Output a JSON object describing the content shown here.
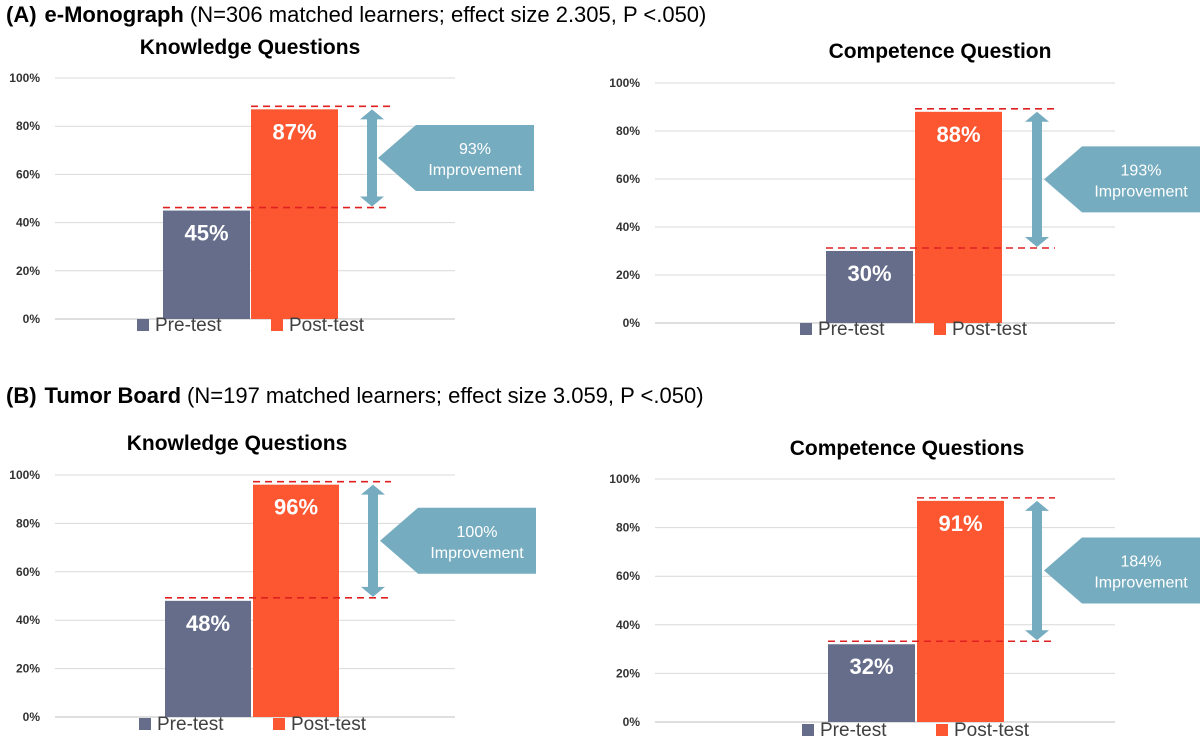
{
  "sections": [
    {
      "letter": "(A)",
      "name": "e-Monograph",
      "detail": "(N=306 matched learners; effect size 2.305, P <.050)"
    },
    {
      "letter": "(B)",
      "name": "Tumor Board",
      "detail": "(N=197 matched learners; effect size 3.059, P <.050)"
    }
  ],
  "colors": {
    "pre": "#656d8a",
    "post": "#fc5731",
    "arrow": "#76acbf",
    "dashed": "#e02020",
    "grid": "#d9d9d9",
    "axis": "#333333"
  },
  "chart_data": [
    {
      "type": "bar",
      "title": "Knowledge Questions",
      "categories": [
        "Pre-test",
        "Post-test"
      ],
      "values": [
        45,
        87
      ],
      "value_labels": [
        "45%",
        "87%"
      ],
      "improvement_label": [
        "93%",
        "Improvement"
      ],
      "yticks": [
        "0%",
        "20%",
        "40%",
        "60%",
        "80%",
        "100%"
      ],
      "ylim": [
        0,
        100
      ],
      "legend": [
        "Pre-test",
        "Post-test"
      ]
    },
    {
      "type": "bar",
      "title": "Competence Question",
      "categories": [
        "Pre-test",
        "Post-test"
      ],
      "values": [
        30,
        88
      ],
      "value_labels": [
        "30%",
        "88%"
      ],
      "improvement_label": [
        "193%",
        "Improvement"
      ],
      "yticks": [
        "0%",
        "20%",
        "40%",
        "60%",
        "80%",
        "100%"
      ],
      "ylim": [
        0,
        100
      ],
      "legend": [
        "Pre-test",
        "Post-test"
      ]
    },
    {
      "type": "bar",
      "title": "Knowledge Questions",
      "categories": [
        "Pre-test",
        "Post-test"
      ],
      "values": [
        48,
        96
      ],
      "value_labels": [
        "48%",
        "96%"
      ],
      "improvement_label": [
        "100%",
        "Improvement"
      ],
      "yticks": [
        "0%",
        "20%",
        "40%",
        "60%",
        "80%",
        "100%"
      ],
      "ylim": [
        0,
        100
      ],
      "legend": [
        "Pre-test",
        "Post-test"
      ]
    },
    {
      "type": "bar",
      "title": "Competence Questions",
      "categories": [
        "Pre-test",
        "Post-test"
      ],
      "values": [
        32,
        91
      ],
      "value_labels": [
        "32%",
        "91%"
      ],
      "improvement_label": [
        "184%",
        "Improvement"
      ],
      "yticks": [
        "0%",
        "20%",
        "40%",
        "60%",
        "80%",
        "100%"
      ],
      "ylim": [
        0,
        100
      ],
      "legend": [
        "Pre-test",
        "Post-test"
      ]
    }
  ]
}
